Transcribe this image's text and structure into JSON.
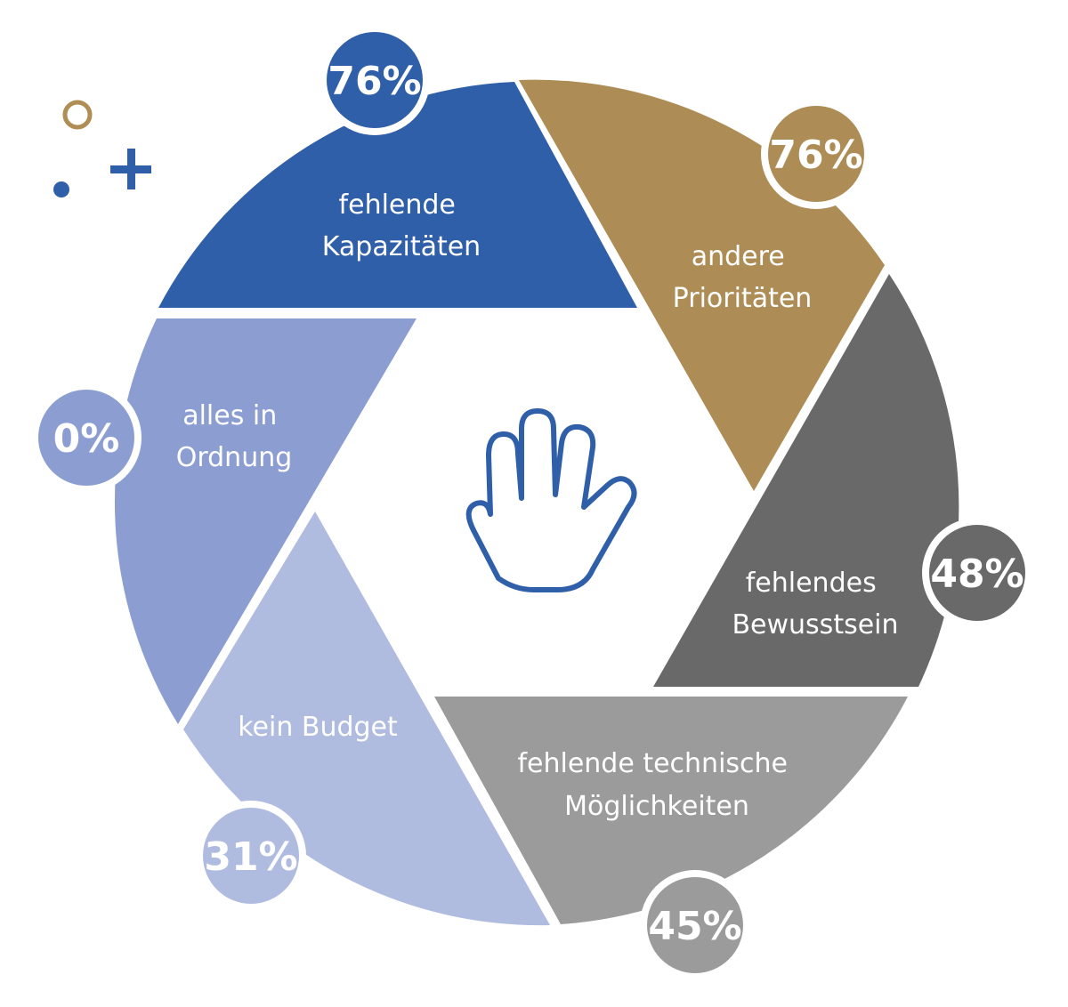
{
  "colors": {
    "background": "#ffffff",
    "separator": "#ffffff",
    "label_text": "#ffffff",
    "badge_text": "#ffffff",
    "hand_outline": "#2f5fa8",
    "decor_ring": "#b08d55",
    "decor_plus": "#2f5fa8",
    "decor_dot": "#2f5fa8"
  },
  "center_icon": "hand-icon",
  "decorations": [
    "ring-icon",
    "plus-icon",
    "dot-icon"
  ],
  "segments": [
    {
      "id": "kapazitaeten",
      "label_lines": [
        "fehlende",
        "Kapazitäten"
      ],
      "value": "76%",
      "percent": 76,
      "color": "#2f5fa8"
    },
    {
      "id": "prioritaeten",
      "label_lines": [
        "andere",
        "Prioritäten"
      ],
      "value": "76%",
      "percent": 76,
      "color": "#ad8d55"
    },
    {
      "id": "bewusstsein",
      "label_lines": [
        "fehlendes",
        "Bewusstsein"
      ],
      "value": "48%",
      "percent": 48,
      "color": "#696969"
    },
    {
      "id": "technisch",
      "label_lines": [
        "fehlende technische",
        "Möglichkeiten"
      ],
      "value": "45%",
      "percent": 45,
      "color": "#9b9b9b"
    },
    {
      "id": "budget",
      "label_lines": [
        "kein Budget"
      ],
      "value": "31%",
      "percent": 31,
      "color": "#b0bbe0"
    },
    {
      "id": "ordnung",
      "label_lines": [
        "alles in",
        "Ordnung"
      ],
      "value": "0%",
      "percent": 0,
      "color": "#8c9ed1"
    }
  ]
}
